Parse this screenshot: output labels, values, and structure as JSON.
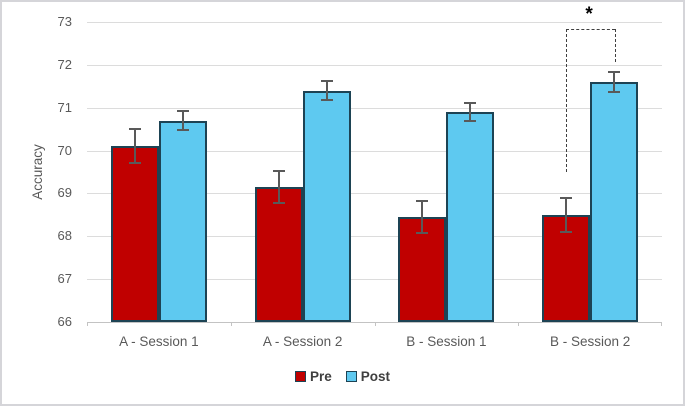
{
  "chart_data": {
    "type": "bar",
    "title": "",
    "xlabel": "",
    "ylabel": "Accuracy",
    "ylim": [
      66,
      73
    ],
    "ytick_step": 1,
    "grid": true,
    "legend_position": "bottom-center",
    "categories": [
      "A - Session 1",
      "A - Session 2",
      "B - Session 1",
      "B - Session 2"
    ],
    "series": [
      {
        "name": "Pre",
        "color": "#c00000",
        "values": [
          70.1,
          69.15,
          68.45,
          68.5
        ],
        "errors": [
          0.4,
          0.38,
          0.38,
          0.4
        ]
      },
      {
        "name": "Post",
        "color": "#5ec9f0",
        "values": [
          70.7,
          71.4,
          70.9,
          71.6
        ],
        "errors": [
          0.23,
          0.22,
          0.22,
          0.23
        ]
      }
    ],
    "bar_border_color": "#1d4354",
    "error_bar_color": "#595959",
    "gridline_color": "#dcdcdc",
    "significance": {
      "label": "*",
      "category": "B - Session 2",
      "between": [
        "Pre",
        "Post"
      ],
      "line_style": "dashed"
    }
  }
}
